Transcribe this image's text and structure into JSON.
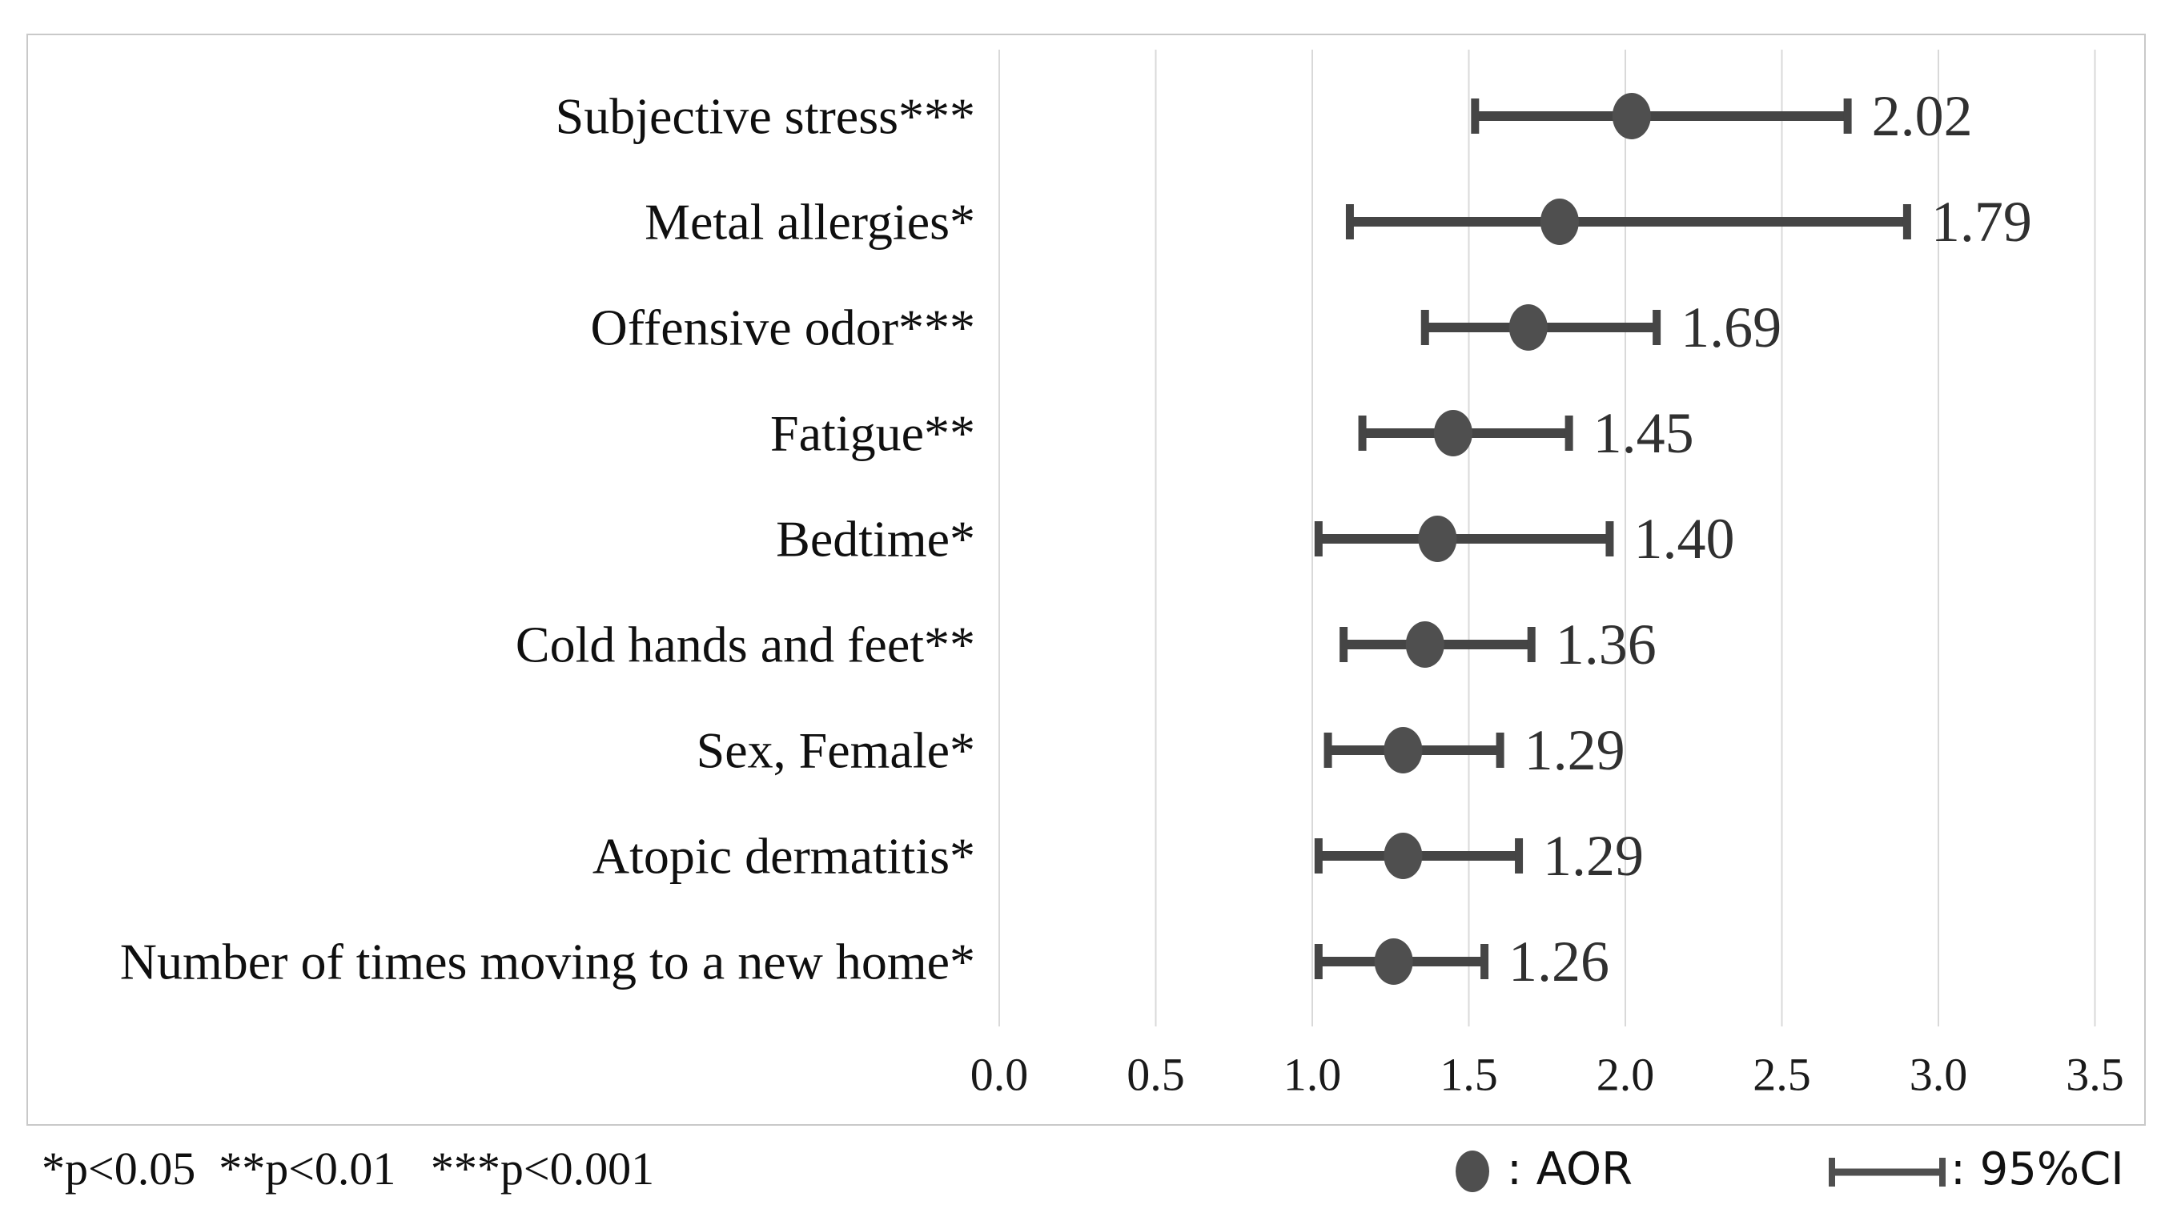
{
  "figure": {
    "footnote": "*p<0.05  **p<0.01   ***p<0.001",
    "legend": {
      "aor_label": ": AOR",
      "ci_label": ": 95%CI"
    },
    "colors": {
      "marker": "#4f4f4f",
      "error_bar": "#454545",
      "gridline": "#d9d9d9",
      "border": "#c9c9c9",
      "value_text": "#303030",
      "label_text": "#0f0f0f"
    }
  },
  "chart_data": {
    "type": "scatter",
    "variant": "forest-plot",
    "title": "",
    "xlabel": "",
    "ylabel": "",
    "xlim": [
      0.0,
      3.5
    ],
    "x_ticks": [
      "0.0",
      "0.5",
      "1.0",
      "1.5",
      "2.0",
      "2.5",
      "3.0",
      "3.5"
    ],
    "grid": "vertical",
    "legend_position": "bottom-right",
    "marker_meaning": "AOR",
    "errorbar_meaning": "95%CI",
    "rows": [
      {
        "label": "Subjective stress***",
        "aor": 2.02,
        "ci_low": 1.52,
        "ci_high": 2.71,
        "value_label": "2.02"
      },
      {
        "label": "Metal allergies*",
        "aor": 1.79,
        "ci_low": 1.12,
        "ci_high": 2.9,
        "value_label": "1.79"
      },
      {
        "label": "Offensive odor***",
        "aor": 1.69,
        "ci_low": 1.36,
        "ci_high": 2.1,
        "value_label": "1.69"
      },
      {
        "label": "Fatigue**",
        "aor": 1.45,
        "ci_low": 1.16,
        "ci_high": 1.82,
        "value_label": "1.45"
      },
      {
        "label": "Bedtime*",
        "aor": 1.4,
        "ci_low": 1.02,
        "ci_high": 1.95,
        "value_label": "1.40"
      },
      {
        "label": "Cold hands and feet**",
        "aor": 1.36,
        "ci_low": 1.1,
        "ci_high": 1.7,
        "value_label": "1.36"
      },
      {
        "label": "Sex, Female*",
        "aor": 1.29,
        "ci_low": 1.05,
        "ci_high": 1.6,
        "value_label": "1.29"
      },
      {
        "label": "Atopic dermatitis*",
        "aor": 1.29,
        "ci_low": 1.02,
        "ci_high": 1.66,
        "value_label": "1.29"
      },
      {
        "label": "Number of times moving to a new home*",
        "aor": 1.26,
        "ci_low": 1.02,
        "ci_high": 1.55,
        "value_label": "1.26"
      }
    ]
  }
}
